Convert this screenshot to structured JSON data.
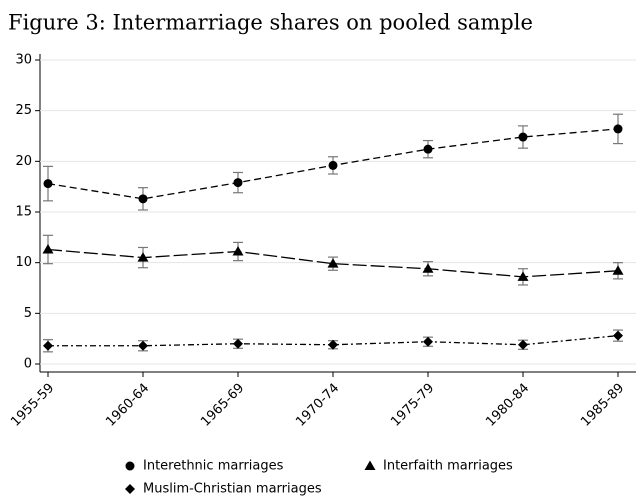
{
  "chart_data": {
    "type": "line",
    "title": "Figure 3: Intermarriage shares on pooled sample",
    "categories": [
      "1955-59",
      "1960-64",
      "1965-69",
      "1970-74",
      "1975-79",
      "1980-84",
      "1985-89"
    ],
    "ylim": [
      0,
      30
    ],
    "yticks": [
      0,
      5,
      10,
      15,
      20,
      25,
      30
    ],
    "grid": true,
    "series": [
      {
        "name": "Interethnic marriages",
        "color": "#000000",
        "marker": "circle",
        "dash": "7,4",
        "values": [
          17.8,
          16.3,
          17.9,
          19.6,
          21.2,
          22.4,
          23.2
        ],
        "errors": [
          1.7,
          1.1,
          1.0,
          0.85,
          0.85,
          1.1,
          1.45
        ]
      },
      {
        "name": "Interfaith marriages",
        "color": "#000000",
        "marker": "triangle",
        "dash": "14,4",
        "values": [
          11.3,
          10.5,
          11.1,
          9.9,
          9.4,
          8.6,
          9.2
        ],
        "errors": [
          1.4,
          1.0,
          0.9,
          0.65,
          0.7,
          0.8,
          0.8
        ]
      },
      {
        "name": "Muslim-Christian marriages",
        "color": "#000000",
        "marker": "diamond",
        "dash": "6,3,2,3",
        "values": [
          1.8,
          1.8,
          2.0,
          1.9,
          2.2,
          1.9,
          2.8
        ],
        "errors": [
          0.6,
          0.5,
          0.45,
          0.4,
          0.45,
          0.45,
          0.55
        ]
      }
    ]
  }
}
